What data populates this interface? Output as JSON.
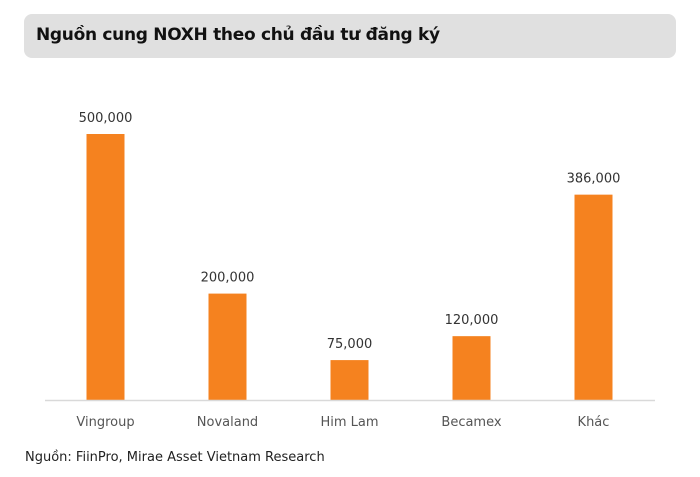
{
  "chart_data": {
    "type": "bar",
    "title": "Nguồn cung NOXH theo chủ đầu tư đăng ký",
    "categories": [
      "Vingroup",
      "Novaland",
      "Him Lam",
      "Becamex",
      "Khác"
    ],
    "values": [
      500000,
      200000,
      75000,
      120000,
      386000
    ],
    "data_labels": [
      "500,000",
      "200,000",
      "75,000",
      "120,000",
      "386,000"
    ],
    "xlabel": "",
    "ylabel": "",
    "ylim": [
      0,
      500000
    ],
    "grid": false,
    "bar_color": "#f5821f",
    "axis_color": "#d9d9d9"
  },
  "source": "Nguồn: FiinPro, Mirae Asset Vietnam Research"
}
